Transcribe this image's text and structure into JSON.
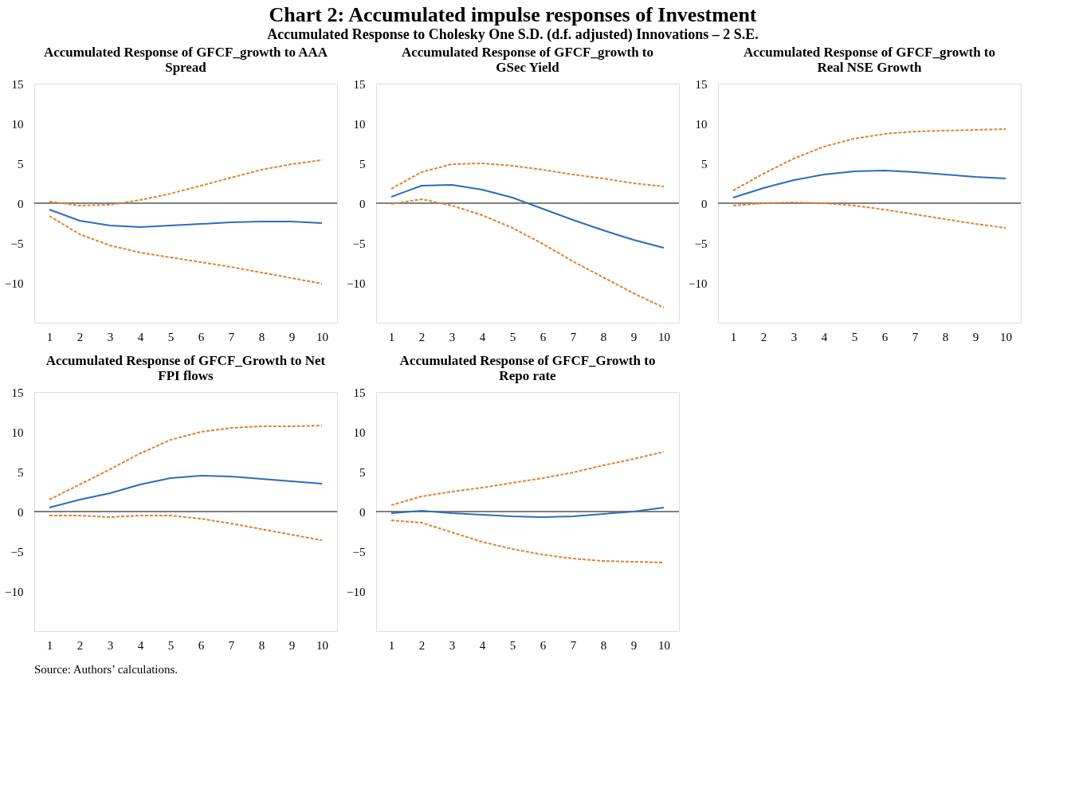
{
  "chart_data": [
    {
      "type": "line",
      "title": "Accumulated Response of GFCF_growth to AAA Spread",
      "categories": [
        "1",
        "2",
        "3",
        "4",
        "5",
        "6",
        "7",
        "8",
        "9",
        "10"
      ],
      "ylim": [
        -15,
        15
      ],
      "yticks": [
        -10,
        -5,
        0,
        5,
        10,
        15
      ],
      "ref_lines": [
        {
          "axis": "y",
          "value": 0
        }
      ],
      "series": [
        {
          "color": "#2f6db5",
          "line_style": "solid",
          "values": [
            -0.8,
            -2.2,
            -2.8,
            -3.0,
            -2.8,
            -2.6,
            -2.4,
            -2.3,
            -2.3,
            -2.5
          ]
        },
        {
          "color": "#e0822f",
          "line_style": "dashed",
          "values": [
            0.2,
            -0.3,
            -0.2,
            0.4,
            1.2,
            2.2,
            3.2,
            4.2,
            4.9,
            5.4
          ]
        },
        {
          "color": "#e0822f",
          "line_style": "dashed",
          "values": [
            -1.6,
            -3.9,
            -5.3,
            -6.2,
            -6.8,
            -7.4,
            -8.0,
            -8.7,
            -9.4,
            -10.1
          ]
        }
      ]
    },
    {
      "type": "line",
      "title": "Accumulated Response of GFCF_growth to GSec Yield",
      "categories": [
        "1",
        "2",
        "3",
        "4",
        "5",
        "6",
        "7",
        "8",
        "9",
        "10"
      ],
      "ylim": [
        -15,
        15
      ],
      "yticks": [
        -10,
        -5,
        0,
        5,
        10,
        15
      ],
      "ref_lines": [
        {
          "axis": "y",
          "value": 0
        }
      ],
      "series": [
        {
          "color": "#2f6db5",
          "line_style": "solid",
          "values": [
            0.8,
            2.2,
            2.3,
            1.7,
            0.7,
            -0.7,
            -2.1,
            -3.4,
            -4.6,
            -5.6
          ]
        },
        {
          "color": "#e0822f",
          "line_style": "dashed",
          "values": [
            1.8,
            3.9,
            4.9,
            5.0,
            4.7,
            4.2,
            3.6,
            3.1,
            2.5,
            2.1
          ]
        },
        {
          "color": "#e0822f",
          "line_style": "dashed",
          "values": [
            -0.1,
            0.5,
            -0.3,
            -1.5,
            -3.1,
            -5.1,
            -7.3,
            -9.3,
            -11.3,
            -13.1
          ]
        }
      ]
    },
    {
      "type": "line",
      "title": "Accumulated Response of GFCF_growth to Real NSE Growth",
      "categories": [
        "1",
        "2",
        "3",
        "4",
        "5",
        "6",
        "7",
        "8",
        "9",
        "10"
      ],
      "ylim": [
        -15,
        15
      ],
      "yticks": [
        -10,
        -5,
        0,
        5,
        10,
        15
      ],
      "ref_lines": [
        {
          "axis": "y",
          "value": 0
        }
      ],
      "series": [
        {
          "color": "#2f6db5",
          "line_style": "solid",
          "values": [
            0.7,
            1.9,
            2.9,
            3.6,
            4.0,
            4.1,
            3.9,
            3.6,
            3.3,
            3.1
          ]
        },
        {
          "color": "#e0822f",
          "line_style": "dashed",
          "values": [
            1.6,
            3.7,
            5.6,
            7.1,
            8.1,
            8.7,
            9.0,
            9.1,
            9.2,
            9.3
          ]
        },
        {
          "color": "#e0822f",
          "line_style": "dashed",
          "values": [
            -0.3,
            0,
            0.1,
            0,
            -0.3,
            -0.8,
            -1.4,
            -2.0,
            -2.6,
            -3.1
          ]
        }
      ]
    },
    {
      "type": "line",
      "title": "Accumulated Response of GFCF_Growth to Net FPI flows",
      "categories": [
        "1",
        "2",
        "3",
        "4",
        "5",
        "6",
        "7",
        "8",
        "9",
        "10"
      ],
      "ylim": [
        -15,
        15
      ],
      "yticks": [
        -10,
        -5,
        0,
        5,
        10,
        15
      ],
      "ref_lines": [
        {
          "axis": "y",
          "value": 0
        }
      ],
      "series": [
        {
          "color": "#2f6db5",
          "line_style": "solid",
          "values": [
            0.5,
            1.5,
            2.3,
            3.4,
            4.2,
            4.5,
            4.4,
            4.1,
            3.8,
            3.5
          ]
        },
        {
          "color": "#e0822f",
          "line_style": "dashed",
          "values": [
            1.5,
            3.4,
            5.3,
            7.3,
            9.0,
            10.0,
            10.5,
            10.7,
            10.7,
            10.8
          ]
        },
        {
          "color": "#e0822f",
          "line_style": "dashed",
          "values": [
            -0.5,
            -0.5,
            -0.7,
            -0.5,
            -0.5,
            -0.9,
            -1.5,
            -2.2,
            -2.9,
            -3.6
          ]
        }
      ]
    },
    {
      "type": "line",
      "title": "Accumulated Response of GFCF_Growth to Repo rate",
      "categories": [
        "1",
        "2",
        "3",
        "4",
        "5",
        "6",
        "7",
        "8",
        "9",
        "10"
      ],
      "ylim": [
        -15,
        15
      ],
      "yticks": [
        -10,
        -5,
        0,
        5,
        10,
        15
      ],
      "ref_lines": [
        {
          "axis": "y",
          "value": 0
        }
      ],
      "series": [
        {
          "color": "#2f6db5",
          "line_style": "solid",
          "values": [
            -0.2,
            0.1,
            -0.2,
            -0.4,
            -0.6,
            -0.7,
            -0.6,
            -0.3,
            0,
            0.5
          ]
        },
        {
          "color": "#e0822f",
          "line_style": "dashed",
          "values": [
            0.8,
            1.9,
            2.5,
            3.0,
            3.6,
            4.2,
            4.9,
            5.8,
            6.6,
            7.5
          ]
        },
        {
          "color": "#e0822f",
          "line_style": "dashed",
          "values": [
            -1.1,
            -1.4,
            -2.6,
            -3.8,
            -4.7,
            -5.4,
            -5.9,
            -6.2,
            -6.3,
            -6.4
          ]
        }
      ]
    },
    {
      "type": "other",
      "title": "Chart 2: Accumulated impulse responses of Investment",
      "subtitle": "Accumulated Response to Cholesky One S.D. (d.f. adjusted) Innovations – 2 S.E.",
      "annotations": [
        "Source: Authors’ calculations."
      ]
    }
  ]
}
